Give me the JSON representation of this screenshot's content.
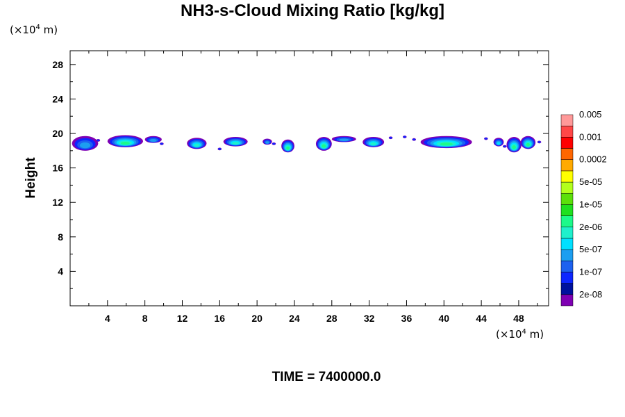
{
  "chart_data": {
    "type": "heatmap",
    "title": "NH3-s-Cloud Mixing Ratio [kg/kg]",
    "ylabel": "Height",
    "x_unit": {
      "prefix": "(×10",
      "exp": "4",
      "suffix": " m)"
    },
    "y_unit": {
      "prefix": "(×10",
      "exp": "4",
      "suffix": " m)"
    },
    "xlim": [
      0,
      51.2
    ],
    "ylim": [
      0,
      29.6
    ],
    "x_ticks_major": [
      4,
      8,
      12,
      16,
      20,
      24,
      28,
      32,
      36,
      40,
      44,
      48
    ],
    "y_ticks_major": [
      4,
      8,
      12,
      16,
      20,
      24,
      28
    ],
    "grid": false,
    "colorbar": {
      "placement": "right",
      "colors": [
        "#7f00b3",
        "#00129e",
        "#0d26ff",
        "#1c61f0",
        "#1c9ef0",
        "#00e0ff",
        "#1ff0cc",
        "#1cfa8a",
        "#1fe01f",
        "#5ce00a",
        "#b3ff1c",
        "#ffff00",
        "#ffaa00",
        "#ff6600",
        "#ff0000",
        "#ff4747",
        "#ff9999"
      ],
      "labels": [
        "2e-08",
        "1e-07",
        "5e-07",
        "2e-06",
        "1e-05",
        "5e-05",
        "0.0002",
        "0.001",
        "0.005"
      ]
    },
    "cloud_blobs": [
      {
        "x0": 0.2,
        "x1": 3.0,
        "y0": 18.0,
        "y1": 19.7,
        "level": 3
      },
      {
        "x0": 4.0,
        "x1": 7.8,
        "y0": 18.4,
        "y1": 19.8,
        "level": 6
      },
      {
        "x0": 8.0,
        "x1": 9.8,
        "y0": 18.9,
        "y1": 19.7,
        "level": 3
      },
      {
        "x0": 12.5,
        "x1": 14.6,
        "y0": 18.2,
        "y1": 19.5,
        "level": 5
      },
      {
        "x0": 16.4,
        "x1": 19.0,
        "y0": 18.5,
        "y1": 19.6,
        "level": 5
      },
      {
        "x0": 20.6,
        "x1": 21.6,
        "y0": 18.7,
        "y1": 19.4,
        "level": 3
      },
      {
        "x0": 22.6,
        "x1": 24.0,
        "y0": 17.8,
        "y1": 19.3,
        "level": 6
      },
      {
        "x0": 26.3,
        "x1": 28.0,
        "y0": 18.0,
        "y1": 19.6,
        "level": 6
      },
      {
        "x0": 28.0,
        "x1": 30.6,
        "y0": 19.0,
        "y1": 19.7,
        "level": 3
      },
      {
        "x0": 31.3,
        "x1": 33.6,
        "y0": 18.4,
        "y1": 19.6,
        "level": 5
      },
      {
        "x0": 37.5,
        "x1": 43.0,
        "y0": 18.3,
        "y1": 19.7,
        "level": 6
      },
      {
        "x0": 45.3,
        "x1": 46.4,
        "y0": 18.5,
        "y1": 19.5,
        "level": 4
      },
      {
        "x0": 46.7,
        "x1": 48.3,
        "y0": 17.8,
        "y1": 19.6,
        "level": 6
      },
      {
        "x0": 48.2,
        "x1": 49.8,
        "y0": 18.2,
        "y1": 19.7,
        "level": 6
      }
    ],
    "small_fragments": [
      {
        "x": 3.0,
        "y": 19.2
      },
      {
        "x": 9.8,
        "y": 18.8
      },
      {
        "x": 16.0,
        "y": 18.2
      },
      {
        "x": 21.8,
        "y": 18.8
      },
      {
        "x": 34.3,
        "y": 19.5
      },
      {
        "x": 35.8,
        "y": 19.6
      },
      {
        "x": 36.8,
        "y": 19.3
      },
      {
        "x": 44.5,
        "y": 19.4
      },
      {
        "x": 46.5,
        "y": 18.5
      },
      {
        "x": 50.2,
        "y": 19.0
      }
    ]
  },
  "time_label": "TIME = 7400000.0"
}
